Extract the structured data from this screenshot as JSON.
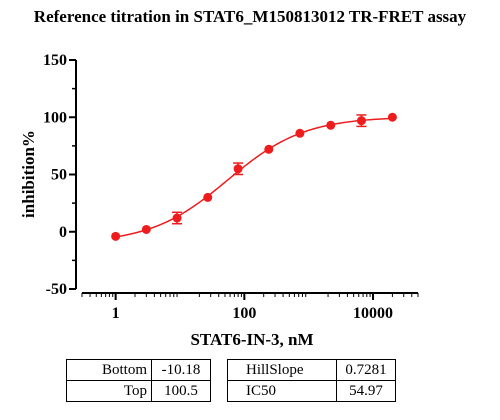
{
  "chart_data": {
    "type": "scatter",
    "title": "Reference titration in STAT6_M150813012 TR-FRET assay",
    "xlabel": "STAT6-IN-3, nM",
    "ylabel": "inhibition%",
    "x_scale": "log",
    "xlim": [
      0.3,
      50000
    ],
    "ylim": [
      -50,
      150
    ],
    "x_ticks": [
      1,
      100,
      10000
    ],
    "x_tick_labels": [
      "1",
      "100",
      "10000"
    ],
    "y_ticks": [
      -50,
      0,
      50,
      100,
      150
    ],
    "y_tick_labels": [
      "-50",
      "0",
      "50",
      "100",
      "150"
    ],
    "grid": false,
    "color": "#ee1c1c",
    "series": [
      {
        "x": [
          1,
          3,
          9,
          27,
          80,
          240,
          730,
          2200,
          6600,
          20000
        ],
        "y": [
          -4,
          2,
          12,
          30,
          55,
          72,
          86,
          93,
          97,
          100
        ],
        "err": [
          1.5,
          1.5,
          5,
          1.5,
          5,
          2,
          1.5,
          1.5,
          5,
          2
        ]
      }
    ],
    "fit": {
      "bottom": -10.18,
      "top": 100.5,
      "hillslope": 0.7281,
      "ic50": 54.97
    }
  },
  "params": {
    "bottom_label": "Bottom",
    "bottom_value": "-10.18",
    "top_label": "Top",
    "top_value": "100.5",
    "hillslope_label": "HillSlope",
    "hillslope_value": "0.7281",
    "ic50_label": "IC50",
    "ic50_value": "54.97"
  }
}
